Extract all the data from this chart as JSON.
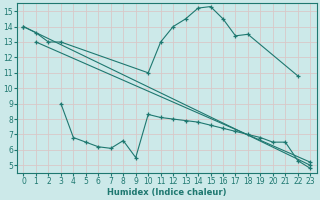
{
  "xlabel": "Humidex (Indice chaleur)",
  "xlim": [
    -0.5,
    23.5
  ],
  "ylim": [
    4.5,
    15.5
  ],
  "xticks": [
    0,
    1,
    2,
    3,
    4,
    5,
    6,
    7,
    8,
    9,
    10,
    11,
    12,
    13,
    14,
    15,
    16,
    17,
    18,
    19,
    20,
    21,
    22,
    23
  ],
  "yticks": [
    5,
    6,
    7,
    8,
    9,
    10,
    11,
    12,
    13,
    14,
    15
  ],
  "bg_color": "#cce9e9",
  "line_color": "#1e7870",
  "grid_color": "#b0d4d4",
  "series": [
    {
      "x": [
        0,
        1,
        2,
        3,
        10,
        11,
        12,
        13,
        14,
        15,
        16,
        17,
        18,
        22
      ],
      "y": [
        14.0,
        13.6,
        13.0,
        13.0,
        11.0,
        13.0,
        14.0,
        14.5,
        15.2,
        15.3,
        14.5,
        13.4,
        13.5,
        10.8
      ]
    },
    {
      "x": [
        0,
        23
      ],
      "y": [
        14.0,
        5.0
      ]
    },
    {
      "x": [
        1,
        23
      ],
      "y": [
        13.0,
        5.2
      ]
    },
    {
      "x": [
        3,
        4,
        5,
        6,
        7,
        8,
        9,
        10,
        11,
        12,
        13,
        14,
        15,
        16,
        17,
        18,
        19,
        20,
        21,
        22,
        23
      ],
      "y": [
        9.0,
        6.8,
        6.5,
        6.2,
        6.1,
        6.6,
        5.5,
        8.3,
        8.1,
        8.0,
        7.9,
        7.8,
        7.6,
        7.4,
        7.2,
        7.0,
        6.8,
        6.5,
        6.5,
        5.3,
        4.8
      ]
    }
  ]
}
